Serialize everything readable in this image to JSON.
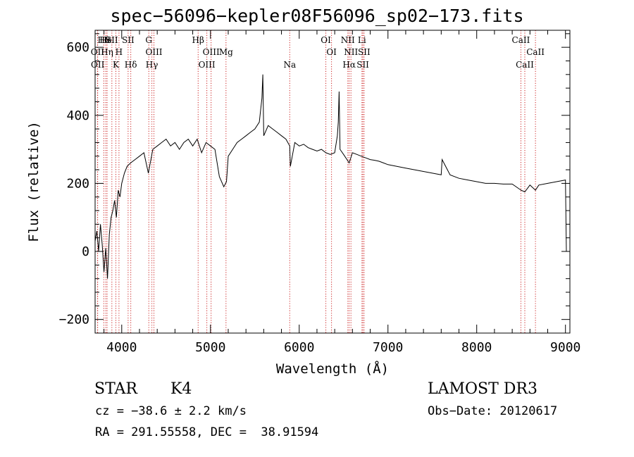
{
  "chart_data": {
    "type": "line",
    "title": "spec−56096−kepler08F56096_sp02−173.fits",
    "xlabel": "Wavelength (Å)",
    "ylabel": "Flux (relative)",
    "xlim": [
      3700,
      9050
    ],
    "ylim": [
      -240,
      650
    ],
    "x_ticks": [
      4000,
      5000,
      6000,
      7000,
      8000,
      9000
    ],
    "y_ticks": [
      -200,
      0,
      200,
      400,
      600
    ],
    "y_tick_labels": [
      "−200",
      "0",
      "200",
      "400",
      "600"
    ],
    "series": [
      {
        "name": "flux",
        "x": [
          3700,
          3720,
          3740,
          3760,
          3780,
          3800,
          3820,
          3840,
          3860,
          3880,
          3900,
          3920,
          3940,
          3960,
          3980,
          4000,
          4030,
          4060,
          4100,
          4150,
          4200,
          4250,
          4300,
          4350,
          4400,
          4450,
          4500,
          4550,
          4600,
          4650,
          4700,
          4750,
          4800,
          4850,
          4900,
          4950,
          5000,
          5050,
          5100,
          5150,
          5180,
          5200,
          5250,
          5300,
          5350,
          5400,
          5450,
          5500,
          5550,
          5580,
          5590,
          5600,
          5650,
          5700,
          5750,
          5800,
          5850,
          5893,
          5900,
          5950,
          6000,
          6050,
          6100,
          6150,
          6200,
          6250,
          6300,
          6350,
          6400,
          6430,
          6440,
          6450,
          6460,
          6500,
          6563,
          6600,
          6650,
          6700,
          6750,
          6800,
          6850,
          6900,
          6950,
          7000,
          7100,
          7200,
          7300,
          7400,
          7500,
          7600,
          7610,
          7700,
          7800,
          7900,
          8000,
          8100,
          8200,
          8300,
          8400,
          8500,
          8542,
          8600,
          8662,
          8700,
          8800,
          8900,
          9000,
          9010
        ],
        "values": [
          30,
          60,
          0,
          80,
          20,
          -60,
          10,
          -80,
          50,
          100,
          120,
          150,
          100,
          180,
          160,
          200,
          230,
          250,
          260,
          270,
          280,
          290,
          230,
          300,
          310,
          320,
          330,
          310,
          320,
          300,
          320,
          330,
          310,
          330,
          290,
          320,
          310,
          300,
          220,
          190,
          205,
          280,
          300,
          320,
          330,
          340,
          350,
          360,
          380,
          450,
          520,
          340,
          370,
          360,
          350,
          340,
          330,
          310,
          250,
          320,
          310,
          315,
          305,
          300,
          295,
          300,
          290,
          285,
          290,
          340,
          380,
          470,
          300,
          285,
          260,
          290,
          285,
          280,
          275,
          270,
          268,
          265,
          260,
          255,
          250,
          245,
          240,
          235,
          230,
          225,
          270,
          225,
          215,
          210,
          205,
          200,
          200,
          198,
          198,
          180,
          175,
          195,
          180,
          195,
          200,
          205,
          210,
          0
        ]
      }
    ],
    "line_markers": [
      {
        "label": "Hθ",
        "x": 3798
      },
      {
        "label": "OII",
        "x": 3727
      },
      {
        "label": "OII",
        "x": 3729
      },
      {
        "label": "He",
        "x": 3820
      },
      {
        "label": "Hη",
        "x": 3835
      },
      {
        "label": "K",
        "x": 3934
      },
      {
        "label": "SII",
        "x": 3889
      },
      {
        "label": "H",
        "x": 3969
      },
      {
        "label": "Hδ",
        "x": 4102
      },
      {
        "label": "SII",
        "x": 4072
      },
      {
        "label": "OIII",
        "x": 4363
      },
      {
        "label": "Hγ",
        "x": 4340
      },
      {
        "label": "G",
        "x": 4305
      },
      {
        "label": "OIII",
        "x": 5007
      },
      {
        "label": "OIII",
        "x": 4959
      },
      {
        "label": "Hβ",
        "x": 4861
      },
      {
        "label": "Mg",
        "x": 5175
      },
      {
        "label": "Na",
        "x": 5893
      },
      {
        "label": "OI",
        "x": 6300
      },
      {
        "label": "OI",
        "x": 6364
      },
      {
        "label": "Hα",
        "x": 6563
      },
      {
        "label": "NII",
        "x": 6548
      },
      {
        "label": "NII",
        "x": 6583
      },
      {
        "label": "SII",
        "x": 6717
      },
      {
        "label": "Li",
        "x": 6707
      },
      {
        "label": "SII",
        "x": 6731
      },
      {
        "label": "CaII",
        "x": 8542
      },
      {
        "label": "CaII",
        "x": 8498
      },
      {
        "label": "CaII",
        "x": 8662
      }
    ]
  },
  "info": {
    "object_class": "STAR",
    "subclass": "K4",
    "survey": "LAMOST DR3",
    "cz": "cz = −38.6 ± 2.2 km/s",
    "obs_date": "Obs−Date: 20120617",
    "coords": "RA = 291.55558, DEC =  38.91594"
  }
}
